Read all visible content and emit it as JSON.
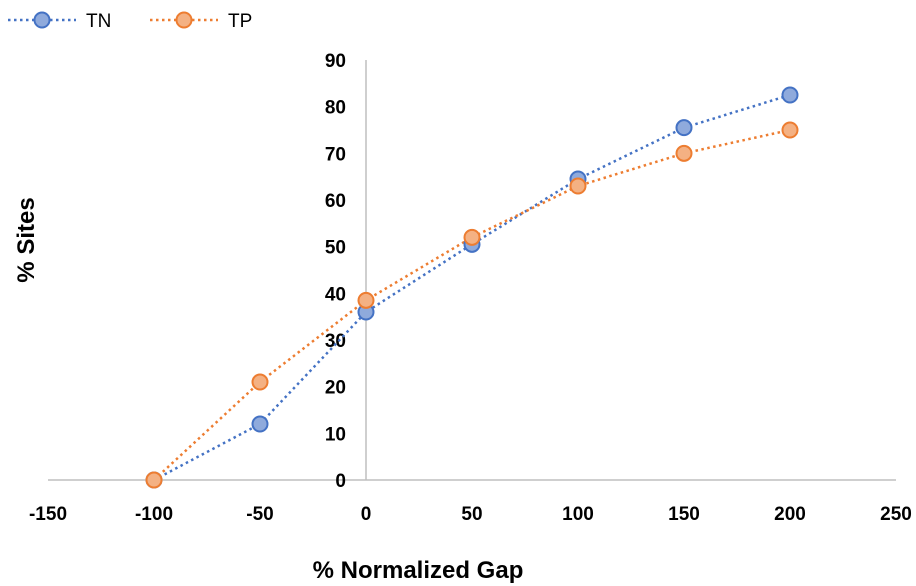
{
  "chart_data": {
    "type": "line",
    "title": "",
    "xlabel": "% Normalized Gap",
    "ylabel": "% Sites",
    "xlim": [
      -150,
      250
    ],
    "ylim": [
      0,
      90
    ],
    "xticks": [
      -150,
      -100,
      -50,
      0,
      50,
      100,
      150,
      200,
      250
    ],
    "yticks": [
      0,
      10,
      20,
      30,
      40,
      50,
      60,
      70,
      80,
      90
    ],
    "grid": false,
    "legend_position": "top-left",
    "line_style": "dotted",
    "series": [
      {
        "name": "TN",
        "color": "#4472c4",
        "fill": "#8faadc",
        "x": [
          -100,
          -50,
          0,
          50,
          100,
          150,
          200
        ],
        "y": [
          0,
          12,
          36,
          50.5,
          64.5,
          75.5,
          82.5
        ]
      },
      {
        "name": "TP",
        "color": "#ed7d31",
        "fill": "#f4b183",
        "x": [
          -100,
          -50,
          0,
          50,
          100,
          150,
          200
        ],
        "y": [
          0,
          21,
          38.5,
          52,
          63,
          70,
          75
        ]
      }
    ]
  }
}
